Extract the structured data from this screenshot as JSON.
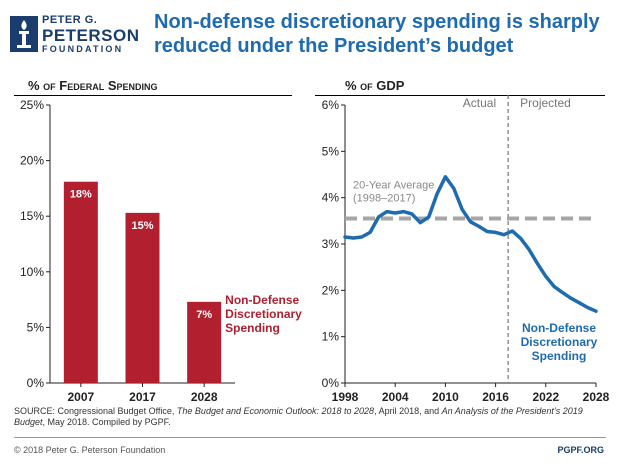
{
  "logo": {
    "line1": "PETER G.",
    "line2": "PETERSON",
    "line3": "FOUNDATION",
    "icon": "torch-icon"
  },
  "title": "Non-defense discretionary spending is sharply reduced under the President’s budget",
  "colors": {
    "title_blue": "#1e6bb0",
    "bar_red": "#b2202f",
    "line_blue": "#1e6bb0",
    "avg_gray": "#a6a6a6",
    "logo_navy": "#1a3d6d"
  },
  "chart_data": [
    {
      "type": "bar",
      "title": "% of Federal Spending",
      "categories": [
        "2007",
        "2017",
        "2028"
      ],
      "values": [
        18.1,
        15.3,
        7.3
      ],
      "data_labels": [
        "18%",
        "15%",
        "7%"
      ],
      "ylim": [
        0,
        25
      ],
      "yticks": [
        0,
        5,
        10,
        15,
        20,
        25
      ],
      "ytick_labels": [
        "0%",
        "5%",
        "10%",
        "15%",
        "20%",
        "25%"
      ],
      "annotation": [
        "Non-Defense",
        "Discretionary",
        "Spending"
      ]
    },
    {
      "type": "line",
      "title": "% of GDP",
      "x": [
        1998,
        1999,
        2000,
        2001,
        2002,
        2003,
        2004,
        2005,
        2006,
        2007,
        2008,
        2009,
        2010,
        2011,
        2012,
        2013,
        2014,
        2015,
        2016,
        2017,
        2018,
        2019,
        2020,
        2021,
        2022,
        2023,
        2024,
        2025,
        2026,
        2027,
        2028
      ],
      "y": [
        3.15,
        3.13,
        3.15,
        3.25,
        3.58,
        3.7,
        3.67,
        3.7,
        3.65,
        3.46,
        3.58,
        4.08,
        4.45,
        4.2,
        3.75,
        3.48,
        3.38,
        3.27,
        3.25,
        3.2,
        3.28,
        3.12,
        2.88,
        2.58,
        2.3,
        2.08,
        1.95,
        1.83,
        1.73,
        1.63,
        1.55
      ],
      "average": 3.55,
      "average_label": [
        "20-Year Average",
        "(1998–2017)"
      ],
      "xlim": [
        1998,
        2028
      ],
      "ylim": [
        0,
        6
      ],
      "xticks": [
        1998,
        2004,
        2010,
        2016,
        2022,
        2028
      ],
      "xtick_labels": [
        "1998",
        "2004",
        "2010",
        "2016",
        "2022",
        "2028"
      ],
      "yticks": [
        0,
        1,
        2,
        3,
        4,
        5,
        6
      ],
      "ytick_labels": [
        "0%",
        "1%",
        "2%",
        "3%",
        "4%",
        "5%",
        "6%"
      ],
      "divider_x": 2017.5,
      "phase_labels": [
        "Actual",
        "Projected"
      ],
      "annotation": [
        "Non-Defense",
        "Discretionary",
        "Spending"
      ]
    }
  ],
  "source": {
    "p1": "SOURCE: Congressional Budget Office, ",
    "i1": "The Budget and Economic Outlook: 2018 to 2028",
    "p2": ", April 2018, and ",
    "i2": "An Analysis of the President’s 2019 Budget",
    "p3": ", May 2018. Compiled by PGPF."
  },
  "footer": {
    "copyright": "© 2018 Peter G. Peterson Foundation",
    "site": "PGPF.ORG"
  }
}
